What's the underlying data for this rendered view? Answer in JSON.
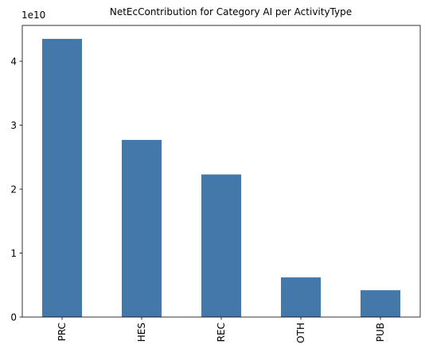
{
  "chart_data": {
    "type": "bar",
    "title": "NetEcContribution for Category AI per ActivityType",
    "xlabel": "",
    "ylabel": "",
    "categories": [
      "PRC",
      "HES",
      "REC",
      "OTH",
      "PUB"
    ],
    "values": [
      43500000000,
      27700000000,
      22300000000,
      6200000000,
      4200000000
    ],
    "ylim": [
      0,
      45600000000
    ],
    "y_ticks": [
      0,
      10000000000,
      20000000000,
      30000000000,
      40000000000
    ],
    "y_tick_labels": [
      "0",
      "1",
      "2",
      "3",
      "4"
    ],
    "y_offset_label": "1e10",
    "bar_color": "#4477aa",
    "grid": false,
    "legend": "none"
  }
}
